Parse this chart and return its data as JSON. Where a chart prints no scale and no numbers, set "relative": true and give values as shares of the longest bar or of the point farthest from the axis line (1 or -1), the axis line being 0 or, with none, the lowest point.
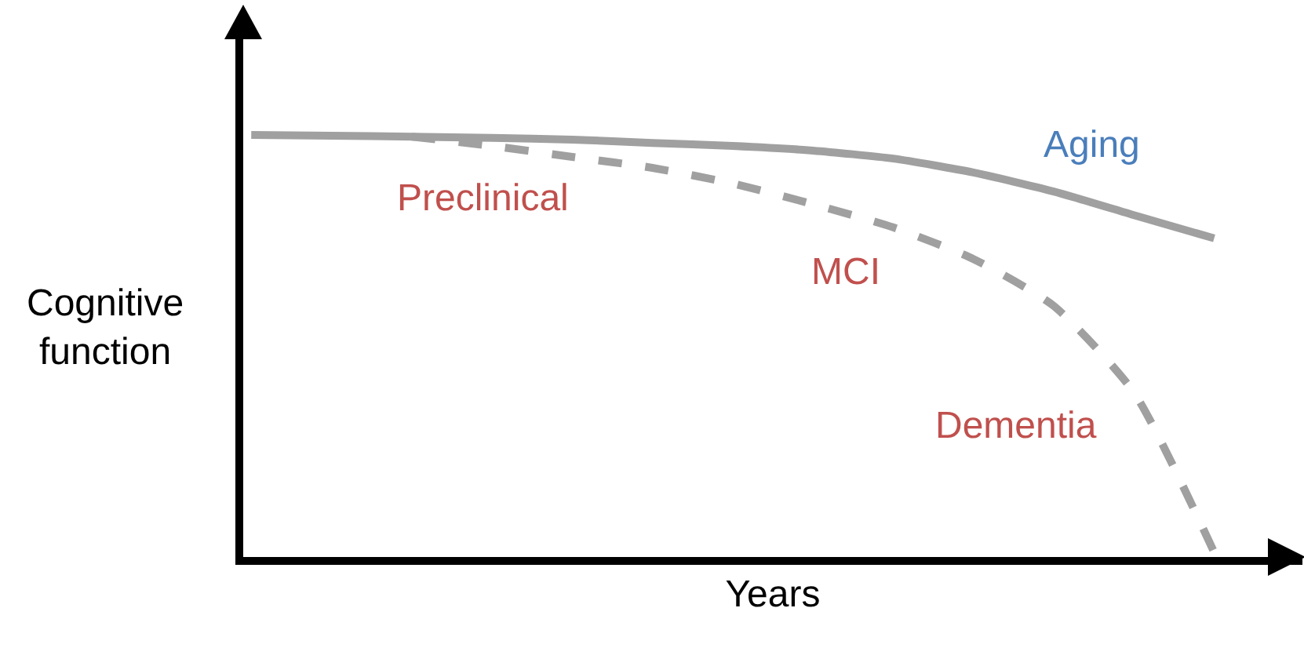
{
  "chart_data": {
    "type": "line",
    "relative": true,
    "xlabel": "Years",
    "ylabel": "Cognitive function",
    "categories": [
      null,
      null,
      null,
      null,
      null,
      null,
      null,
      null,
      null,
      null,
      null,
      null,
      null
    ],
    "series": [
      {
        "color": "#a0a0a0",
        "line_style": "solid",
        "values": [
          1,
          0.998,
          0.996,
          0.993,
          0.989,
          0.981,
          0.974,
          0.963,
          0.944,
          0.911,
          0.866,
          0.81,
          0.755
        ]
      },
      {
        "color": "#a0a0a0",
        "line_style": "dashed",
        "values": [
          null,
          null,
          0.996,
          0.974,
          0.948,
          0.922,
          0.885,
          0.836,
          0.781,
          0.706,
          0.595,
          0.39,
          0.011
        ]
      }
    ],
    "annotations": [
      "Aging",
      "Preclinical",
      "MCI",
      "Dementia"
    ],
    "grid": false,
    "marker": "none"
  }
}
